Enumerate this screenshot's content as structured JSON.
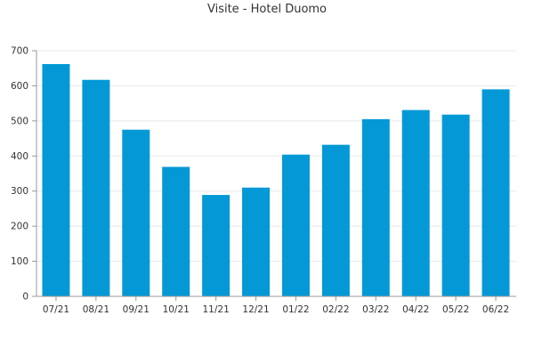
{
  "chart_data": {
    "type": "bar",
    "title": "Visite - Hotel Duomo",
    "xlabel": "",
    "ylabel": "",
    "categories": [
      "07/21",
      "08/21",
      "09/21",
      "10/21",
      "11/21",
      "12/21",
      "01/22",
      "02/22",
      "03/22",
      "04/22",
      "05/22",
      "06/22"
    ],
    "values": [
      662,
      617,
      475,
      369,
      289,
      310,
      404,
      432,
      505,
      531,
      518,
      590
    ],
    "ylim": [
      0,
      700
    ],
    "yticks": [
      0,
      100,
      200,
      300,
      400,
      500,
      600,
      700
    ],
    "grid": true,
    "legend": "none",
    "colors": {
      "bar": "#0499d6",
      "grid": "#e8e8e8",
      "axis": "#999999"
    }
  }
}
